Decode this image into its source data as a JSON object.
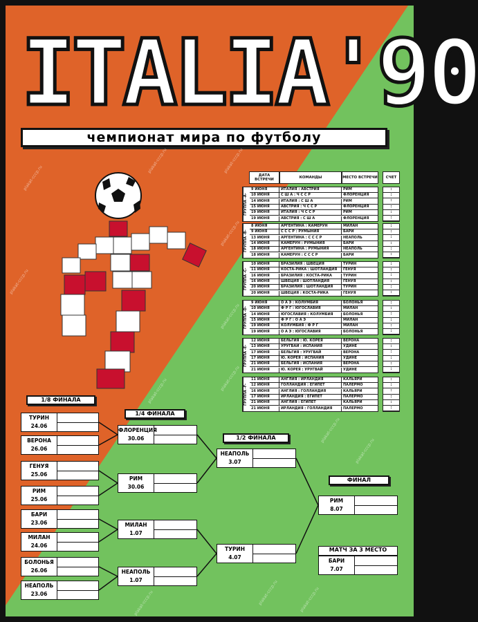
{
  "title": "ITALIA'90",
  "subtitle": "чемпионат мира по футболу",
  "watermark": "plakat-cccp.ru",
  "colors": {
    "orange": "#df6329",
    "green": "#72c25e"
  },
  "groups_header": {
    "date": "ДАТА ВСТРЕЧИ",
    "teams": "КОМАНДЫ",
    "venue": "МЕСТО ВСТРЕЧИ",
    "score": "СЧЕТ"
  },
  "groups": [
    {
      "label": "ГРУППА -А-",
      "matches": [
        [
          "9 ИЮНЯ",
          "ИТАЛИЯ : АВСТРИЯ",
          "РИМ"
        ],
        [
          "10 ИЮНЯ",
          "С Ш А : Ч С С Р",
          "ФЛОРЕНЦИЯ"
        ],
        [
          "14 ИЮНЯ",
          "ИТАЛИЯ : С Ш А",
          "РИМ"
        ],
        [
          "15 ИЮНЯ",
          "АВСТРИЯ : Ч С С Р",
          "ФЛОРЕНЦИЯ"
        ],
        [
          "19 ИЮНЯ",
          "ИТАЛИЯ : Ч С С Р",
          "РИМ"
        ],
        [
          "19 ИЮНЯ",
          "АВСТРИЯ : С Ш А",
          "ФЛОРЕНЦИЯ"
        ]
      ]
    },
    {
      "label": "ГРУППА -В-",
      "matches": [
        [
          "8 ИЮНЯ",
          "АРГЕНТИНА : КАМЕРУН",
          "МИЛАН"
        ],
        [
          "9 ИЮНЯ",
          "С С С Р : РУМЫНИЯ",
          "БАРИ"
        ],
        [
          "13 ИЮНЯ",
          "АРГЕНТИНА : С С С Р",
          "НЕАПОЛЬ"
        ],
        [
          "14 ИЮНЯ",
          "КАМЕРУН : РУМЫНИЯ",
          "БАРИ"
        ],
        [
          "18 ИЮНЯ",
          "АРГЕНТИНА : РУМЫНИЯ",
          "НЕАПОЛЬ"
        ],
        [
          "18 ИЮНЯ",
          "КАМЕРУН : С С С Р",
          "БАРИ"
        ]
      ]
    },
    {
      "label": "ГРУППА -С-",
      "matches": [
        [
          "10 ИЮНЯ",
          "БРАЗИЛИЯ : ШВЕЦИЯ",
          "ТУРИН"
        ],
        [
          "11 ИЮНЯ",
          "КОСТА-РИКА : ШОТЛАНДИЯ",
          "ГЕНУЯ"
        ],
        [
          "16 ИЮНЯ",
          "БРАЗИЛИЯ : КОСТА-РИКА",
          "ТУРИН"
        ],
        [
          "16 ИЮНЯ",
          "ШВЕЦИЯ : ШОТЛАНДИЯ",
          "ГЕНУЯ"
        ],
        [
          "20 ИЮНЯ",
          "БРАЗИЛИЯ : ШОТЛАНДИЯ",
          "ТУРИН"
        ],
        [
          "20 ИЮНЯ",
          "ШВЕЦИЯ : КОСТА-РИКА",
          "ГЕНУЯ"
        ]
      ]
    },
    {
      "label": "ГРУППА -D-",
      "matches": [
        [
          "9 ИЮНЯ",
          "О А Э : КОЛУМБИЯ",
          "БОЛОНЬЯ"
        ],
        [
          "10 ИЮНЯ",
          "Ф Р Г : ЮГОСЛАВИЯ",
          "МИЛАН"
        ],
        [
          "14 ИЮНЯ",
          "ЮГОСЛАВИЯ : КОЛУМБИЯ",
          "БОЛОНЬЯ"
        ],
        [
          "15 ИЮНЯ",
          "Ф Р Г : О А Э",
          "МИЛАН"
        ],
        [
          "19 ИЮНЯ",
          "КОЛУМБИЯ : Ф Р Г",
          "МИЛАН"
        ],
        [
          "19 ИЮНЯ",
          "О А Э : ЮГОСЛАВИЯ",
          "БОЛОНЬЯ"
        ]
      ]
    },
    {
      "label": "ГРУППА -Е-",
      "matches": [
        [
          "12 ИЮНЯ",
          "БЕЛЬГИЯ : Ю. КОРЕЯ",
          "ВЕРОНА"
        ],
        [
          "13 ИЮНЯ",
          "УРУГВАЙ : ИСПАНИЯ",
          "УДИНЕ"
        ],
        [
          "17 ИЮНЯ",
          "БЕЛЬГИЯ : УРУГВАЙ",
          "ВЕРОНА"
        ],
        [
          "17 ИЮНЯ",
          "Ю. КОРЕЯ : ИСПАНИЯ",
          "УДИНЕ"
        ],
        [
          "21 ИЮНЯ",
          "БЕЛЬГИЯ : ИСПАНИЯ",
          "ВЕРОНА"
        ],
        [
          "21 ИЮНЯ",
          "Ю. КОРЕЯ : УРУГВАЙ",
          "УДИНЕ"
        ]
      ]
    },
    {
      "label": "ГРУППА -F-",
      "matches": [
        [
          "11 ИЮНЯ",
          "АНГЛИЯ : ИРЛАНДИЯ",
          "КАЛЬЯРИ"
        ],
        [
          "12 ИЮНЯ",
          "ГОЛЛАНДИЯ : ЕГИПЕТ",
          "ПАЛЕРМО"
        ],
        [
          "16 ИЮНЯ",
          "АНГЛИЯ : ГОЛЛАНДИЯ",
          "КАЛЬЯРИ"
        ],
        [
          "17 ИЮНЯ",
          "ИРЛАНДИЯ : ЕГИПЕТ",
          "ПАЛЕРМО"
        ],
        [
          "21 ИЮНЯ",
          "АНГЛИЯ : ЕГИПЕТ",
          "КАЛЬЯРИ"
        ],
        [
          "21 ИЮНЯ",
          "ИРЛАНДИЯ : ГОЛЛАНДИЯ",
          "ПАЛЕРМО"
        ]
      ]
    }
  ],
  "score_placeholder": ":",
  "bracket": {
    "r16_label": "1/8 ФИНАЛА",
    "r16": [
      [
        "ТУРИН",
        "24.06"
      ],
      [
        "ВЕРОНА",
        "26.06"
      ],
      [
        "ГЕНУЯ",
        "25.06"
      ],
      [
        "РИМ",
        "25.06"
      ],
      [
        "БАРИ",
        "23.06"
      ],
      [
        "МИЛАН",
        "24.06"
      ],
      [
        "БОЛОНЬЯ",
        "26.06"
      ],
      [
        "НЕАПОЛЬ",
        "23.06"
      ]
    ],
    "qf_label": "1/4 ФИНАЛА",
    "qf": [
      [
        "ФЛОРЕНЦИЯ",
        "30.06"
      ],
      [
        "РИМ",
        "30.06"
      ],
      [
        "МИЛАН",
        "1.07"
      ],
      [
        "НЕАПОЛЬ",
        "1.07"
      ]
    ],
    "sf_label": "1/2 ФИНАЛА",
    "sf": [
      [
        "НЕАПОЛЬ",
        "3.07"
      ],
      [
        "ТУРИН",
        "4.07"
      ]
    ],
    "final_label": "ФИНАЛ",
    "final": [
      "РИМ",
      "8.07"
    ],
    "third_label": "МАТЧ ЗА 3 МЕСТО",
    "third": [
      "БАРИ",
      "7.07"
    ]
  }
}
